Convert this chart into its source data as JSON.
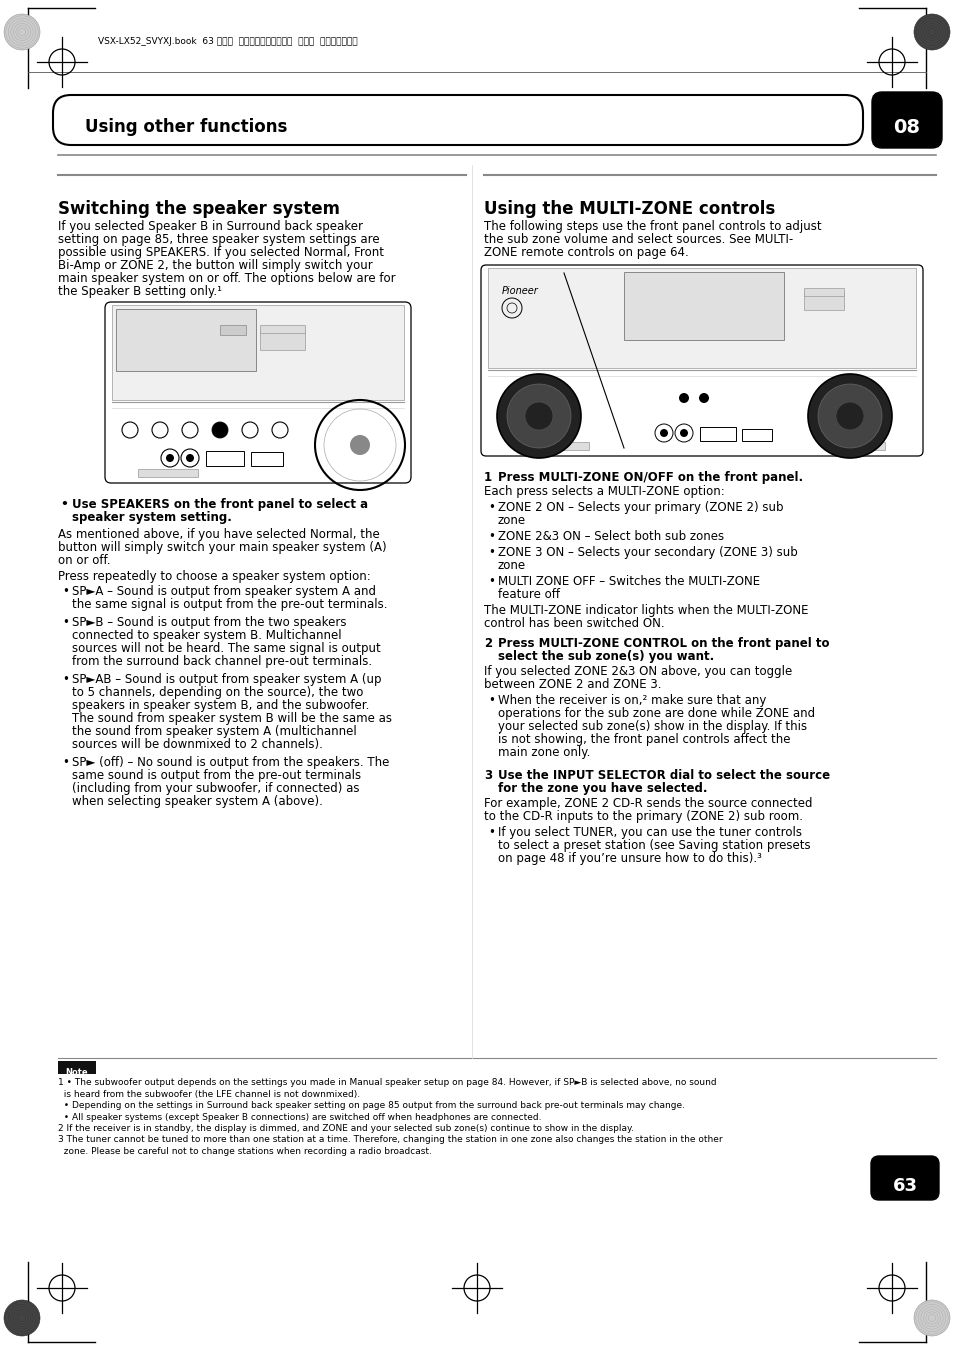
{
  "page_bg": "#ffffff",
  "top_meta": "VSX-LX52_SVYXJ.book  63 ページ  ２００９年２月２６日  木曜日  午後４時３１分",
  "header_text": "Using other functions",
  "header_number": "08",
  "page_number": "63",
  "page_lang": "En",
  "left_col_title": "Switching the speaker system",
  "right_col_title": "Using the MULTI-ZONE controls"
}
